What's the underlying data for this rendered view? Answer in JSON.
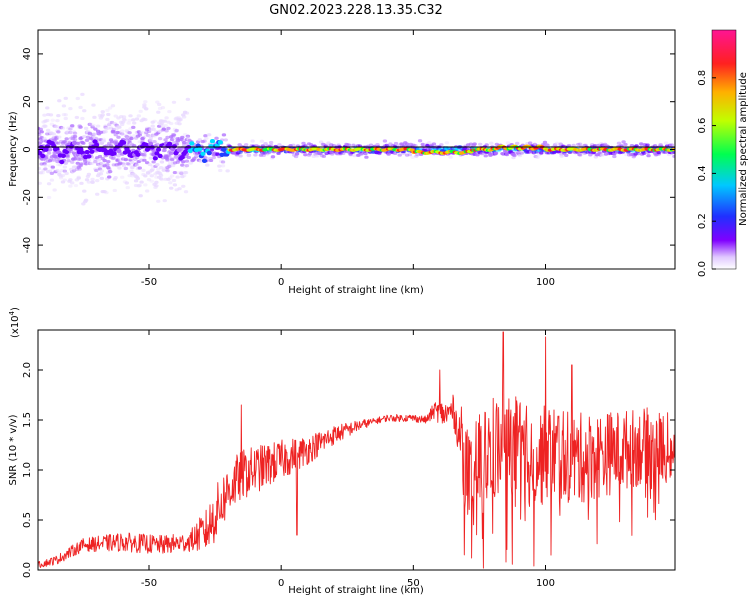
{
  "title": "GN02.2023.228.13.35.C32",
  "colors": {
    "snr_line": "#ee2222",
    "center_line": "#000000",
    "colormap": [
      "#e8d8ff",
      "#b070ff",
      "#6a00ff",
      "#2040ff",
      "#00e0ff",
      "#00ff40",
      "#c8ff00",
      "#ffb000",
      "#ff2020",
      "#ff1493"
    ]
  },
  "chart_data": [
    {
      "name": "spectrogram",
      "type": "heatmap",
      "title": "",
      "xlabel": "Height of straight line (km)",
      "ylabel": "Frequency (Hz)",
      "xlim": [
        -92,
        149
      ],
      "ylim": [
        -50,
        50
      ],
      "xticks": [
        -50,
        0,
        50,
        100
      ],
      "xtick_labels": [
        "-50",
        "0",
        "",
        "100"
      ],
      "yticks": [
        -40,
        -20,
        0,
        20,
        40
      ],
      "ytick_labels": [
        "-40",
        "-20",
        "0",
        "20",
        "40"
      ],
      "center_line_value": 0,
      "description_bands": [
        {
          "x_from": -92,
          "x_to": -35,
          "spread_hz": 20,
          "peak_amp": 0.25
        },
        {
          "x_from": -35,
          "x_to": -20,
          "spread_hz": 8,
          "peak_amp": 0.45
        },
        {
          "x_from": -20,
          "x_to": 149,
          "spread_hz": 3,
          "peak_amp": 0.9
        }
      ]
    },
    {
      "name": "snr",
      "type": "line",
      "title": "",
      "xlabel": "Height of straight line (km)",
      "ylabel": "SNR (10 * v/v)",
      "y_multiplier": "(x10",
      "y_multiplier_exp": "4",
      "y_multiplier_close": ")",
      "xlim": [
        -92,
        149
      ],
      "ylim": [
        0,
        2.4
      ],
      "xticks": [
        -50,
        0,
        50,
        100
      ],
      "xtick_labels": [
        "-50",
        "0",
        "50",
        "100"
      ],
      "yticks": [
        0.0,
        0.5,
        1.0,
        1.5,
        2.0
      ],
      "ytick_labels": [
        "0.0",
        "0.5",
        "1.0",
        "1.5",
        "2.0"
      ],
      "envelope": {
        "x": [
          -92,
          -85,
          -75,
          -60,
          -45,
          -35,
          -28,
          -24,
          -20,
          -15,
          -10,
          0,
          10,
          20,
          30,
          40,
          50,
          55,
          58,
          62,
          65,
          68,
          70,
          72,
          75,
          80,
          85,
          90,
          95,
          100,
          105,
          110,
          120,
          130,
          140,
          149
        ],
        "y": [
          0.05,
          0.1,
          0.25,
          0.28,
          0.25,
          0.28,
          0.4,
          0.6,
          0.8,
          0.95,
          1.0,
          1.1,
          1.2,
          1.35,
          1.45,
          1.52,
          1.52,
          1.5,
          1.6,
          1.55,
          1.6,
          1.3,
          1.0,
          0.8,
          1.1,
          1.2,
          1.25,
          1.2,
          1.1,
          1.15,
          1.2,
          1.1,
          1.15,
          1.2,
          1.25,
          1.2
        ]
      },
      "noise": {
        "x": [
          -92,
          -60,
          -35,
          -25,
          -10,
          0,
          20,
          35,
          55,
          60,
          66,
          70,
          80,
          100,
          149
        ],
        "amp": [
          0.04,
          0.12,
          0.12,
          0.35,
          0.3,
          0.25,
          0.12,
          0.04,
          0.05,
          0.15,
          0.2,
          0.5,
          0.55,
          0.5,
          0.35
        ]
      },
      "annotated_peaks": [
        {
          "x": -15,
          "y": 1.65
        },
        {
          "x": 60,
          "y": 2.0
        },
        {
          "x": 84,
          "y": 2.38
        },
        {
          "x": 100,
          "y": 2.33
        },
        {
          "x": 110,
          "y": 2.05
        },
        {
          "x": 72,
          "y": 0.12
        },
        {
          "x": 85,
          "y": 0.08
        },
        {
          "x": 6,
          "y": 0.35
        }
      ]
    }
  ],
  "colorbar": {
    "label": "Normalized spectral amplitude",
    "range": [
      0,
      1
    ],
    "ticks": [
      0.0,
      0.2,
      0.4,
      0.6,
      0.8
    ],
    "tick_labels": [
      "0.0",
      "0.2",
      "0.4",
      "0.6",
      "0.8"
    ]
  }
}
